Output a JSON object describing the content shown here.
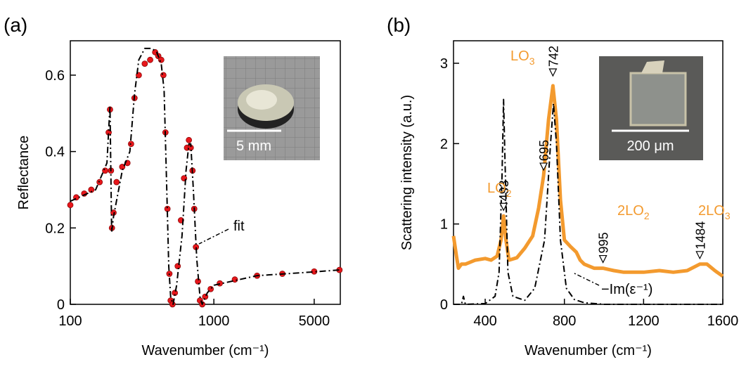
{
  "chart_data": [
    {
      "type": "line",
      "panel_label": "(a)",
      "xlabel": "Wavenumber (cm⁻¹)",
      "ylabel": "Reflectance",
      "xscale": "log",
      "xlim": [
        100,
        7600
      ],
      "xticks": [
        100,
        1000,
        5000
      ],
      "ylim": [
        0,
        0.69
      ],
      "yticks": [
        0,
        0.2,
        0.4,
        0.6
      ],
      "series": [
        {
          "color": "#e8161b",
          "marker": "o",
          "linestyle": "none",
          "x": [
            100,
            110,
            125,
            140,
            160,
            175,
            185,
            189,
            192,
            195,
            200,
            210,
            230,
            250,
            265,
            280,
            300,
            330,
            360,
            390,
            410,
            430,
            445,
            460,
            475,
            490,
            500,
            515,
            535,
            560,
            590,
            620,
            650,
            670,
            690,
            710,
            730,
            750,
            775,
            800,
            830,
            870,
            950,
            1100,
            1400,
            2000,
            3000,
            5000,
            7500
          ],
          "values": [
            0.26,
            0.28,
            0.29,
            0.3,
            0.32,
            0.35,
            0.45,
            0.51,
            0.35,
            0.2,
            0.24,
            0.32,
            0.36,
            0.37,
            0.42,
            0.54,
            0.6,
            0.63,
            0.64,
            0.66,
            0.65,
            0.64,
            0.6,
            0.45,
            0.25,
            0.08,
            0.01,
            0,
            0.03,
            0.1,
            0.22,
            0.33,
            0.41,
            0.43,
            0.41,
            0.35,
            0.25,
            0.15,
            0.06,
            0.01,
            0,
            0.02,
            0.04,
            0.055,
            0.065,
            0.075,
            0.08,
            0.086,
            0.09
          ]
        },
        {
          "color": "#000000",
          "marker": "none",
          "linestyle": "dashdot",
          "x": [
            100,
            150,
            180,
            189,
            194,
            200,
            230,
            260,
            280,
            300,
            330,
            370,
            400,
            430,
            450,
            470,
            485,
            500,
            520,
            550,
            600,
            640,
            670,
            690,
            720,
            760,
            800,
            830,
            900,
            1000,
            2000,
            5000,
            7500
          ],
          "values": [
            0.27,
            0.3,
            0.37,
            0.52,
            0.19,
            0.23,
            0.35,
            0.4,
            0.55,
            0.64,
            0.67,
            0.67,
            0.66,
            0.63,
            0.56,
            0.3,
            0.1,
            0.02,
            0,
            0.05,
            0.18,
            0.35,
            0.42,
            0.42,
            0.3,
            0.12,
            0.02,
            0,
            0.03,
            0.05,
            0.075,
            0.085,
            0.09
          ]
        }
      ],
      "annotation": "fit",
      "inset_scale": "5 mm"
    },
    {
      "type": "line",
      "panel_label": "(b)",
      "xlabel": "Wavenumber (cm⁻¹)",
      "ylabel": "Scattering intensity (a.u.)",
      "xscale": "linear",
      "xlim": [
        240,
        1600
      ],
      "xticks": [
        400,
        800,
        1200,
        1600
      ],
      "ylim": [
        0,
        3.28
      ],
      "yticks": [
        0,
        1,
        2,
        3
      ],
      "series": [
        {
          "color": "#f39a2e",
          "marker": "none",
          "linestyle": "solid",
          "x": [
            240,
            255,
            265,
            280,
            300,
            350,
            400,
            430,
            460,
            480,
            493,
            505,
            520,
            560,
            600,
            640,
            670,
            695,
            720,
            742,
            760,
            780,
            800,
            830,
            860,
            880,
            900,
            950,
            995,
            1050,
            1100,
            1200,
            1280,
            1350,
            1420,
            1484,
            1520,
            1560,
            1600
          ],
          "values": [
            0.85,
            0.6,
            0.45,
            0.5,
            0.5,
            0.55,
            0.57,
            0.55,
            0.6,
            0.8,
            1.1,
            0.8,
            0.55,
            0.58,
            0.7,
            0.85,
            1.2,
            1.6,
            2.3,
            2.72,
            2.3,
            1.3,
            0.8,
            0.72,
            0.65,
            0.55,
            0.5,
            0.45,
            0.45,
            0.42,
            0.4,
            0.4,
            0.42,
            0.4,
            0.42,
            0.5,
            0.5,
            0.42,
            0.35
          ]
        },
        {
          "color": "#000000",
          "marker": "none",
          "linestyle": "dashdot",
          "x": [
            240,
            280,
            290,
            300,
            400,
            450,
            470,
            485,
            493,
            500,
            515,
            540,
            600,
            650,
            700,
            730,
            745,
            760,
            780,
            810,
            850,
            900,
            1000,
            1600
          ],
          "values": [
            0,
            0,
            0.1,
            0,
            0.01,
            0.1,
            0.4,
            1.6,
            2.55,
            1.8,
            0.4,
            0.1,
            0.05,
            0.2,
            0.8,
            2.0,
            2.5,
            2.0,
            0.8,
            0.2,
            0.06,
            0.02,
            0,
            0
          ]
        }
      ],
      "annotation": "−Im(ε⁻¹)",
      "peaks": [
        742,
        695,
        493,
        995,
        1484
      ],
      "mode_labels": [
        {
          "text": "LO",
          "sub": "3"
        },
        {
          "text": "LO",
          "sub": "2"
        },
        {
          "text": "2LO",
          "sub": "2"
        },
        {
          "text": "2LO",
          "sub": "3"
        }
      ],
      "inset_scale": "200 μm"
    }
  ]
}
